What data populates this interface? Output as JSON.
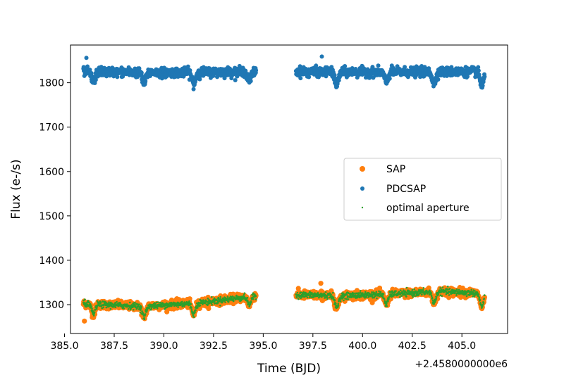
{
  "chart_data": {
    "type": "scatter",
    "title": "",
    "xlabel": "Time (BJD)",
    "ylabel": "Flux (e-/s)",
    "x_offset_label": "+2.4580000000e6",
    "xlim": [
      385.3,
      407.3
    ],
    "ylim": [
      1235,
      1885
    ],
    "x_ticks": [
      385.0,
      387.5,
      390.0,
      392.5,
      395.0,
      397.5,
      400.0,
      402.5,
      405.0
    ],
    "x_tick_labels": [
      "385.0",
      "387.5",
      "390.0",
      "392.5",
      "395.0",
      "397.5",
      "400.0",
      "402.5",
      "405.0"
    ],
    "y_ticks": [
      1300,
      1400,
      1500,
      1600,
      1700,
      1800
    ],
    "y_tick_labels": [
      "1300",
      "1400",
      "1500",
      "1600",
      "1700",
      "1800"
    ],
    "grid": false,
    "legend_position": "center-right",
    "orbits": [
      {
        "t_start": 385.95,
        "t_end": 394.65
      },
      {
        "t_start": 396.65,
        "t_end": 406.15
      }
    ],
    "series": [
      {
        "name": "SAP",
        "color": "#ff7f0e",
        "marker": "large-dot",
        "baseline": [
          {
            "t": 386.0,
            "flux": 1302
          },
          {
            "t": 389.0,
            "flux": 1296
          },
          {
            "t": 392.0,
            "flux": 1305
          },
          {
            "t": 394.6,
            "flux": 1320
          },
          {
            "t": 396.7,
            "flux": 1322
          },
          {
            "t": 399.0,
            "flux": 1320
          },
          {
            "t": 402.0,
            "flux": 1325
          },
          {
            "t": 404.0,
            "flux": 1330
          },
          {
            "t": 406.1,
            "flux": 1325
          }
        ],
        "scatter": 9,
        "outliers": [
          {
            "t": 386.0,
            "flux": 1263
          },
          {
            "t": 397.9,
            "flux": 1348
          }
        ]
      },
      {
        "name": "PDCSAP",
        "color": "#1f77b4",
        "marker": "medium-dot",
        "baseline": [
          {
            "t": 386.0,
            "flux": 1825
          },
          {
            "t": 390.0,
            "flux": 1823
          },
          {
            "t": 394.6,
            "flux": 1825
          },
          {
            "t": 396.7,
            "flux": 1825
          },
          {
            "t": 401.0,
            "flux": 1824
          },
          {
            "t": 406.1,
            "flux": 1825
          }
        ],
        "scatter": 10,
        "outliers": [
          {
            "t": 397.95,
            "flux": 1859
          },
          {
            "t": 386.1,
            "flux": 1856
          }
        ]
      },
      {
        "name": "optimal aperture",
        "color": "#2ca02c",
        "marker": "small-dot",
        "baseline": [
          {
            "t": 386.0,
            "flux": 1302
          },
          {
            "t": 389.0,
            "flux": 1296
          },
          {
            "t": 392.0,
            "flux": 1305
          },
          {
            "t": 394.6,
            "flux": 1320
          },
          {
            "t": 396.7,
            "flux": 1322
          },
          {
            "t": 399.0,
            "flux": 1320
          },
          {
            "t": 402.0,
            "flux": 1325
          },
          {
            "t": 404.0,
            "flux": 1330
          },
          {
            "t": 406.1,
            "flux": 1325
          }
        ],
        "scatter": 7,
        "outliers": []
      }
    ],
    "dips": [
      {
        "t": 386.45,
        "depth": 22
      },
      {
        "t": 389.0,
        "depth": 24
      },
      {
        "t": 391.5,
        "depth": 25
      },
      {
        "t": 394.3,
        "depth": 18
      },
      {
        "t": 398.7,
        "depth": 28
      },
      {
        "t": 401.2,
        "depth": 22
      },
      {
        "t": 403.6,
        "depth": 25
      },
      {
        "t": 406.0,
        "depth": 30
      }
    ]
  }
}
